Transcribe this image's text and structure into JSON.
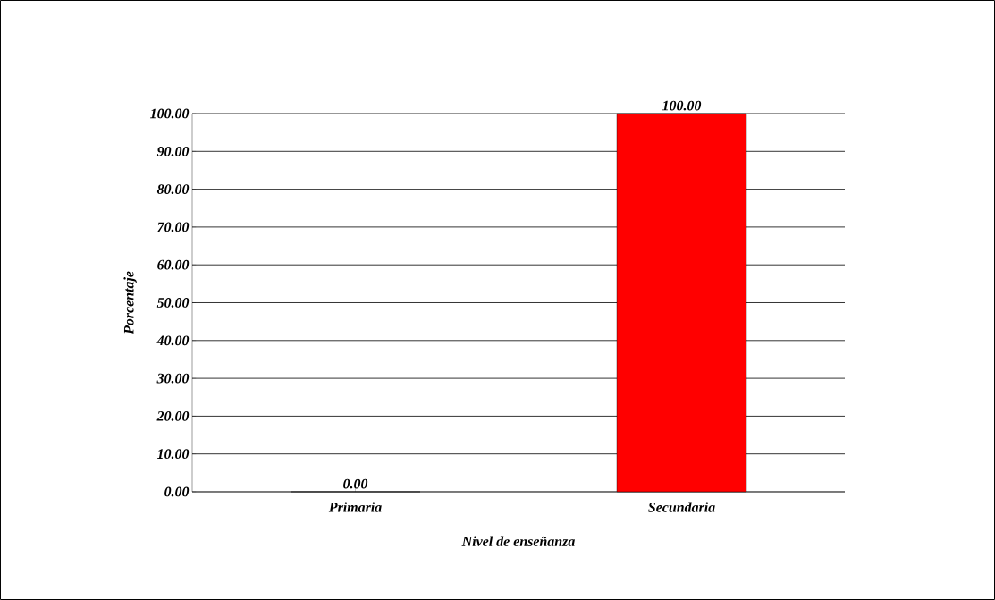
{
  "chart_data": {
    "type": "bar",
    "categories": [
      "Primaria",
      "Secundaria"
    ],
    "values": [
      0,
      100
    ],
    "value_labels": [
      "0.00",
      "100.00"
    ],
    "color": "#ff0000",
    "xlabel": "Nivel de enseñanza",
    "ylabel": "Porcentaje",
    "ylim": [
      0,
      100
    ],
    "yticks": [
      {
        "value": 0,
        "label": "0.00"
      },
      {
        "value": 10,
        "label": "10.00"
      },
      {
        "value": 20,
        "label": "20.00"
      },
      {
        "value": 30,
        "label": "30.00"
      },
      {
        "value": 40,
        "label": "40.00"
      },
      {
        "value": 50,
        "label": "50.00"
      },
      {
        "value": 60,
        "label": "60.00"
      },
      {
        "value": 70,
        "label": "70.00"
      },
      {
        "value": 80,
        "label": "80.00"
      },
      {
        "value": 90,
        "label": "90.00"
      },
      {
        "value": 100,
        "label": "100.00"
      }
    ],
    "grid": "y"
  }
}
